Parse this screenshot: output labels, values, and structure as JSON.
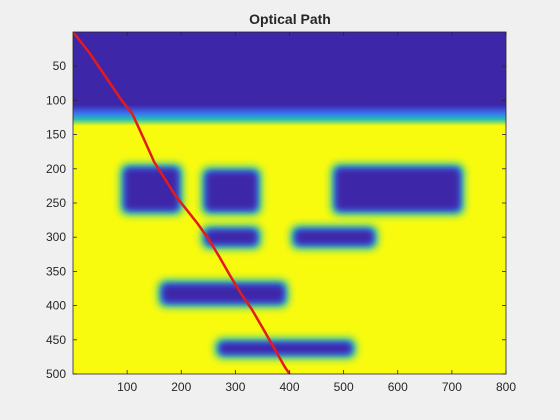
{
  "chart_data": {
    "type": "heatmap",
    "title": "Optical Path",
    "xlabel": "",
    "ylabel": "",
    "xlim": [
      0,
      800
    ],
    "ylim": [
      500,
      0
    ],
    "y_direction": "down",
    "x_ticks": [
      "100",
      "200",
      "300",
      "400",
      "500",
      "600",
      "700",
      "800"
    ],
    "y_ticks": [
      "50",
      "100",
      "150",
      "200",
      "250",
      "300",
      "350",
      "400",
      "450",
      "500"
    ],
    "colormap": {
      "low": "#3e26a8",
      "mid": "#24bfb5",
      "high": "#f9fb0e"
    },
    "background_level": "high",
    "top_band": {
      "y_from": 0,
      "y_to": 130,
      "level": "low"
    },
    "obstacles": [
      {
        "x": [
          90,
          200
        ],
        "y": [
          195,
          265
        ]
      },
      {
        "x": [
          240,
          345
        ],
        "y": [
          200,
          265
        ]
      },
      {
        "x": [
          480,
          720
        ],
        "y": [
          195,
          265
        ]
      },
      {
        "x": [
          240,
          345
        ],
        "y": [
          285,
          315
        ]
      },
      {
        "x": [
          405,
          560
        ],
        "y": [
          285,
          315
        ]
      },
      {
        "x": [
          160,
          395
        ],
        "y": [
          365,
          400
        ]
      },
      {
        "x": [
          265,
          520
        ],
        "y": [
          450,
          475
        ]
      }
    ],
    "series": [
      {
        "color": "#e41a1c",
        "x": [
          0,
          30,
          60,
          90,
          110,
          130,
          150,
          170,
          190,
          210,
          230,
          250,
          270,
          290,
          310,
          330,
          350,
          370,
          390,
          400
        ],
        "y": [
          0,
          30,
          65,
          100,
          120,
          155,
          190,
          215,
          240,
          260,
          280,
          302,
          328,
          356,
          382,
          405,
          432,
          460,
          488,
          500
        ]
      }
    ]
  }
}
